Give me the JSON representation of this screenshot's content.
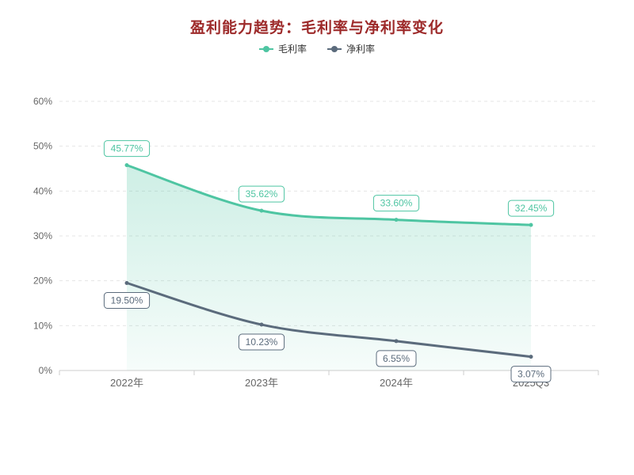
{
  "title": "盈利能力趋势：毛利率与净利率变化",
  "colors": {
    "title": "#9d2a2a",
    "axis_text": "#666666",
    "axis_line": "#cccccc",
    "grid_line": "#e5e5e5",
    "gross_margin": "#4ec5a2",
    "net_margin": "#5b6b7c",
    "area_top": "rgba(78,197,162,0.28)",
    "area_bottom": "rgba(78,197,162,0.05)",
    "label_box_fill": "#ffffff"
  },
  "legend": [
    {
      "label": "毛利率",
      "color": "#4ec5a2"
    },
    {
      "label": "净利率",
      "color": "#5b6b7c"
    }
  ],
  "chart_data": {
    "type": "line",
    "title": "盈利能力趋势：毛利率与净利率变化",
    "categories": [
      "2022年",
      "2023年",
      "2024年",
      "2025Q3"
    ],
    "series": [
      {
        "key": "gross-margin",
        "name": "毛利率",
        "values": [
          45.77,
          35.62,
          33.6,
          32.45
        ],
        "labels": [
          "45.77%",
          "35.62%",
          "33.60%",
          "32.45%"
        ],
        "color": "#4ec5a2",
        "area": true,
        "smooth": true,
        "label_position": "top"
      },
      {
        "key": "net-margin",
        "name": "净利率",
        "values": [
          19.5,
          10.23,
          6.55,
          3.07
        ],
        "labels": [
          "19.50%",
          "10.23%",
          "6.55%",
          "3.07%"
        ],
        "color": "#5b6b7c",
        "area": false,
        "smooth": true,
        "label_position": "bottom"
      }
    ],
    "ylim": [
      0,
      60
    ],
    "yticks": [
      0,
      10,
      20,
      30,
      40,
      50,
      60
    ],
    "ytick_labels": [
      "0%",
      "10%",
      "20%",
      "30%",
      "40%",
      "50%",
      "60%"
    ],
    "grid": true,
    "legend_position": "top"
  }
}
